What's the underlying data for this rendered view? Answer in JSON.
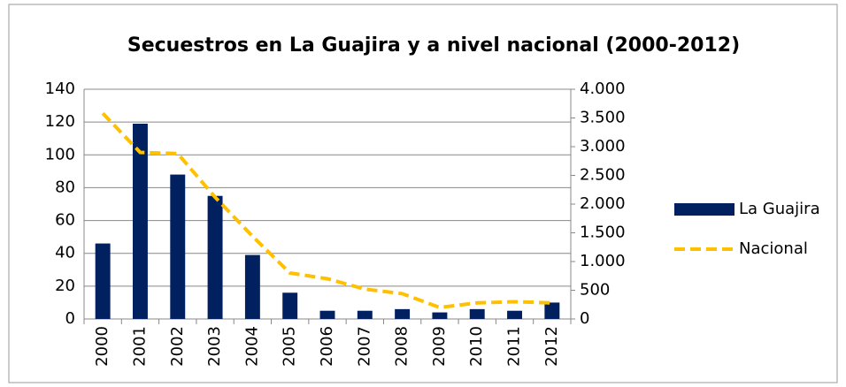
{
  "chart_data": {
    "type": "bar",
    "title": "Secuestros en La Guajira  y a nivel nacional  (2000-2012)",
    "categories": [
      "2000",
      "2001",
      "2002",
      "2003",
      "2004",
      "2005",
      "2006",
      "2007",
      "2008",
      "2009",
      "2010",
      "2011",
      "2012"
    ],
    "series": [
      {
        "name": "La Guajira",
        "color": "#002060",
        "values": [
          46,
          119,
          88,
          75,
          39,
          16,
          5,
          5,
          6,
          4,
          6,
          5,
          10
        ]
      },
      {
        "name": "Nacional",
        "color": "#ffc000",
        "axis": "y2",
        "line_style": "dashed",
        "values": [
          3580,
          2900,
          2880,
          2120,
          1440,
          800,
          700,
          520,
          440,
          200,
          280,
          300,
          280
        ]
      }
    ],
    "ylim": [
      0,
      140
    ],
    "yticks": [
      0,
      20,
      40,
      60,
      80,
      100,
      120,
      140
    ],
    "y2lim": [
      0,
      4000
    ],
    "y2ticks": [
      0,
      500,
      {
        "value": 1000,
        "label": "1.000"
      },
      {
        "value": 1500,
        "label": "1.500"
      },
      {
        "value": 2000,
        "label": "2.000"
      },
      {
        "value": 2500,
        "label": "2.500"
      },
      {
        "value": 3000,
        "label": "3.000"
      },
      {
        "value": 3500,
        "label": "3.500"
      },
      {
        "value": 4000,
        "label": "4.000"
      }
    ],
    "grid": true,
    "legend": "right"
  }
}
